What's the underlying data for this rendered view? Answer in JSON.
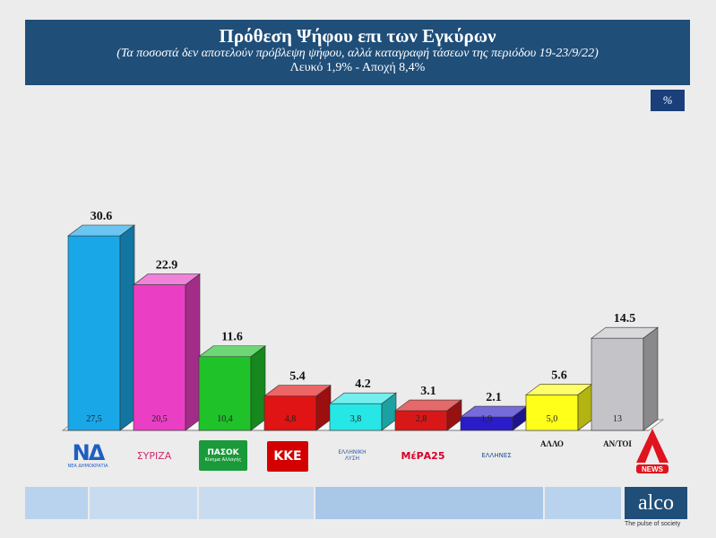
{
  "header": {
    "title": "Πρόθεση Ψήφου επι των Εγκύρων",
    "subtitle": "(Τα ποσοστά δεν αποτελούν πρόβλεψη ψήφου, αλλά καταγραφή τάσεων της περιόδου 19-23/9/22)",
    "note": "Λευκό 1,9% - Αποχή 8,4%"
  },
  "unit_badge": "%",
  "chart_data": {
    "type": "bar",
    "categories": [
      "ΝΔ",
      "ΣΥΡΙΖΑ",
      "ΠΑΣΟΚ",
      "ΚΚΕ",
      "ΕΛΛΗΝΙΚΗ ΛΥΣΗ",
      "ΜέΡΑ25",
      "ΕΛΛΗΝΕΣ",
      "ΑΛΛΟ",
      "ΑΝ/ΤΟΙ"
    ],
    "values": [
      30.6,
      22.9,
      11.6,
      5.4,
      4.2,
      3.1,
      2.1,
      5.6,
      14.5
    ],
    "inner_labels": [
      "27,5",
      "20,5",
      "10,4",
      "4,8",
      "3,8",
      "2,8",
      "1,9",
      "5,0",
      "13"
    ],
    "value_labels": [
      "30.6",
      "22.9",
      "11.6",
      "5.4",
      "4.2",
      "3.1",
      "2.1",
      "5.6",
      "14.5"
    ],
    "colors": [
      "#1aa7e8",
      "#ea3fc4",
      "#20c22a",
      "#e01414",
      "#27e6e6",
      "#d81818",
      "#2a1cc8",
      "#ffff1a",
      "#c3c3c8"
    ],
    "text_labels": [
      "",
      "",
      "",
      "",
      "",
      "",
      "",
      "ΑΛΛΟ",
      "ΑΝ/ΤΟΙ"
    ],
    "ylim": [
      0,
      35
    ],
    "grid": false
  },
  "logos": {
    "nd": {
      "mark": "ΝΔ",
      "text": "ΝΕΑ ΔΗΜΟΚΡΑΤΙΑ",
      "color": "#1f5fbf"
    },
    "syriza": {
      "mark": "ΣΥΡΙΖΑ",
      "color": "#d12a6a"
    },
    "pasok": {
      "mark": "ΠΑΣΟΚ",
      "text": "Κίνημα Αλλαγής",
      "color": "#1a9a3a"
    },
    "kke": {
      "mark": "ΚΚΕ",
      "color": "#d40000"
    },
    "el_lysi": {
      "mark": "ΕΛΛΗΝΙΚΗ ΛΥΣΗ",
      "color": "#2b59a8"
    },
    "mera25": {
      "mark": "ΜέΡΑ25",
      "color": "#d8002a"
    },
    "ellines": {
      "mark": "ΕΛΛΗΝΕΣ",
      "color": "#1d4e8f"
    }
  },
  "brand": {
    "alco": "alco",
    "tagline": "The pulse of society",
    "news": "NEWS",
    "news_color": "#e0141e"
  },
  "strip_colors": [
    "#b9d3ef",
    "#c9dbef",
    "#c9dbef",
    "#a9c8e8",
    "#b9d3ef"
  ]
}
